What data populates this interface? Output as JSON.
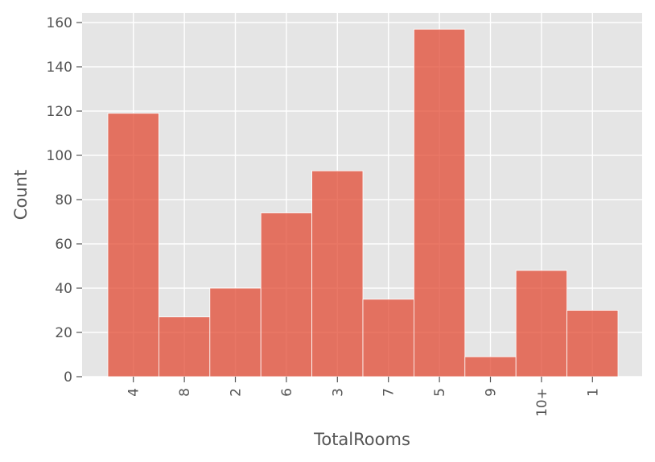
{
  "chart_data": {
    "type": "bar",
    "xlabel": "TotalRooms",
    "ylabel": "Count",
    "categories": [
      "4",
      "8",
      "2",
      "6",
      "3",
      "7",
      "5",
      "9",
      "10+",
      "1"
    ],
    "values": [
      119,
      27,
      40,
      74,
      93,
      35,
      157,
      9,
      48,
      30
    ],
    "yticks": [
      0,
      20,
      40,
      60,
      80,
      100,
      120,
      140,
      160
    ],
    "ylim": [
      0,
      165
    ],
    "grid": true,
    "colors": {
      "bar": "#E24A33",
      "background": "#E5E5E5",
      "grid": "#FFFFFF",
      "text": "#555555"
    }
  }
}
